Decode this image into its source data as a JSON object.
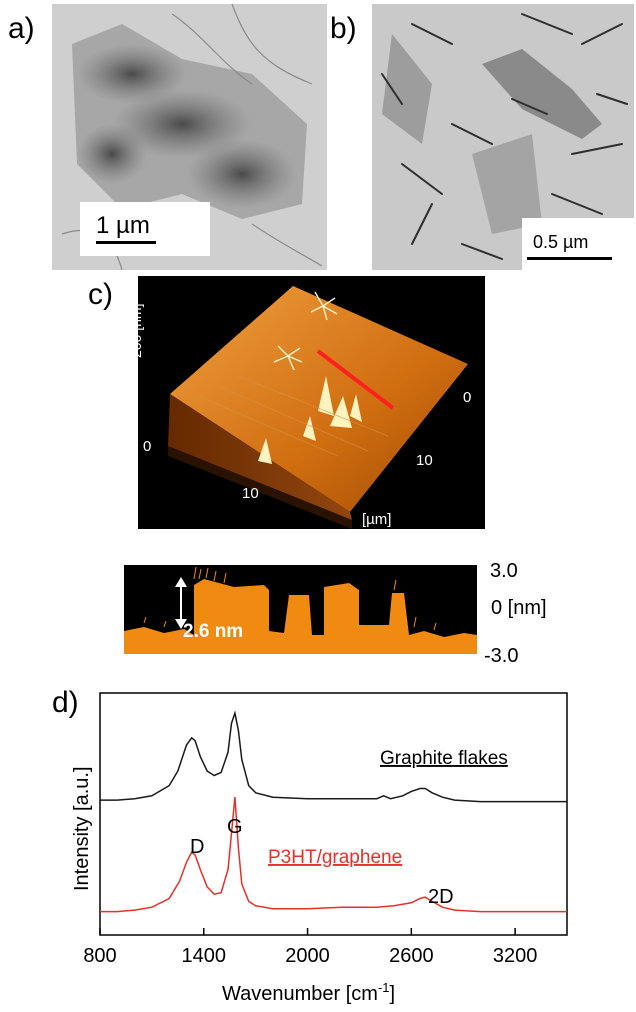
{
  "panel_a": {
    "label": "a)",
    "scale_bar": "1 µm"
  },
  "panel_b": {
    "label": "b)",
    "scale_bar": "0.5 µm"
  },
  "panel_c": {
    "label": "c)",
    "z_axis_label": "200 [nm]",
    "axis_tick_0_left": "0",
    "axis_tick_10_left": "10",
    "axis_tick_0_right": "0",
    "axis_tick_10_right": "10",
    "xy_unit": "[µm]",
    "profile_step": "2.6 nm",
    "profile_top": "3.0",
    "profile_mid": "0 [nm]",
    "profile_bottom": "-3.0",
    "colors": {
      "surface": "#e07a10",
      "profile_fill": "#f08a10",
      "line_scan": "#ff2020"
    }
  },
  "panel_d": {
    "label": "d)"
  },
  "chart_data": {
    "type": "line",
    "xlabel": "Wavenumber [cm",
    "xlabel_sup": "-1",
    "xlabel_end": "]",
    "ylabel": "Intensity [a.u.]",
    "xlim": [
      800,
      3500
    ],
    "xticks": [
      800,
      1400,
      2000,
      2600,
      3200
    ],
    "xtick_labels": [
      "800",
      "1400",
      "2000",
      "2600",
      "3200"
    ],
    "grid": false,
    "series": [
      {
        "name": "Graphite flakes",
        "color": "#1a1a1a",
        "x": [
          800,
          900,
          1000,
          1100,
          1200,
          1250,
          1300,
          1330,
          1350,
          1380,
          1420,
          1460,
          1500,
          1540,
          1560,
          1580,
          1600,
          1620,
          1660,
          1700,
          1800,
          2000,
          2200,
          2400,
          2440,
          2480,
          2550,
          2600,
          2650,
          2680,
          2720,
          2780,
          2850,
          3000,
          3200,
          3500
        ],
        "y": [
          0.02,
          0.02,
          0.03,
          0.05,
          0.12,
          0.22,
          0.4,
          0.45,
          0.43,
          0.32,
          0.22,
          0.19,
          0.21,
          0.35,
          0.55,
          0.62,
          0.5,
          0.3,
          0.12,
          0.07,
          0.04,
          0.03,
          0.03,
          0.03,
          0.05,
          0.03,
          0.05,
          0.08,
          0.1,
          0.1,
          0.07,
          0.04,
          0.02,
          0.01,
          0.01,
          0.01
        ]
      },
      {
        "name": "P3HT/graphene",
        "color": "#e8302a",
        "x": [
          800,
          900,
          1000,
          1100,
          1200,
          1260,
          1300,
          1330,
          1350,
          1380,
          1420,
          1460,
          1500,
          1540,
          1560,
          1580,
          1600,
          1620,
          1660,
          1700,
          1800,
          2000,
          2200,
          2400,
          2500,
          2600,
          2650,
          2680,
          2720,
          2780,
          2850,
          3000,
          3200,
          3500
        ],
        "y": [
          0.01,
          0.01,
          0.02,
          0.04,
          0.1,
          0.22,
          0.35,
          0.42,
          0.4,
          0.3,
          0.18,
          0.13,
          0.14,
          0.3,
          0.55,
          0.8,
          0.45,
          0.2,
          0.08,
          0.05,
          0.03,
          0.03,
          0.04,
          0.04,
          0.05,
          0.07,
          0.1,
          0.11,
          0.08,
          0.04,
          0.02,
          0.01,
          0.01,
          0.01
        ]
      }
    ],
    "annotations": [
      "D",
      "G",
      "2D"
    ]
  }
}
